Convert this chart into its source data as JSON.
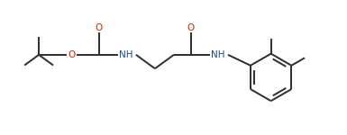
{
  "bg_color": "#ffffff",
  "line_color": "#2d2d2d",
  "o_color": "#cc2200",
  "n_color": "#1a4a8a",
  "fig_width": 3.85,
  "fig_height": 1.5,
  "dpi": 100,
  "lw": 1.4,
  "font_size": 7.5,
  "xlim": [
    0,
    9.5
  ],
  "ylim": [
    0,
    3.5
  ],
  "mid_y": 2.1
}
